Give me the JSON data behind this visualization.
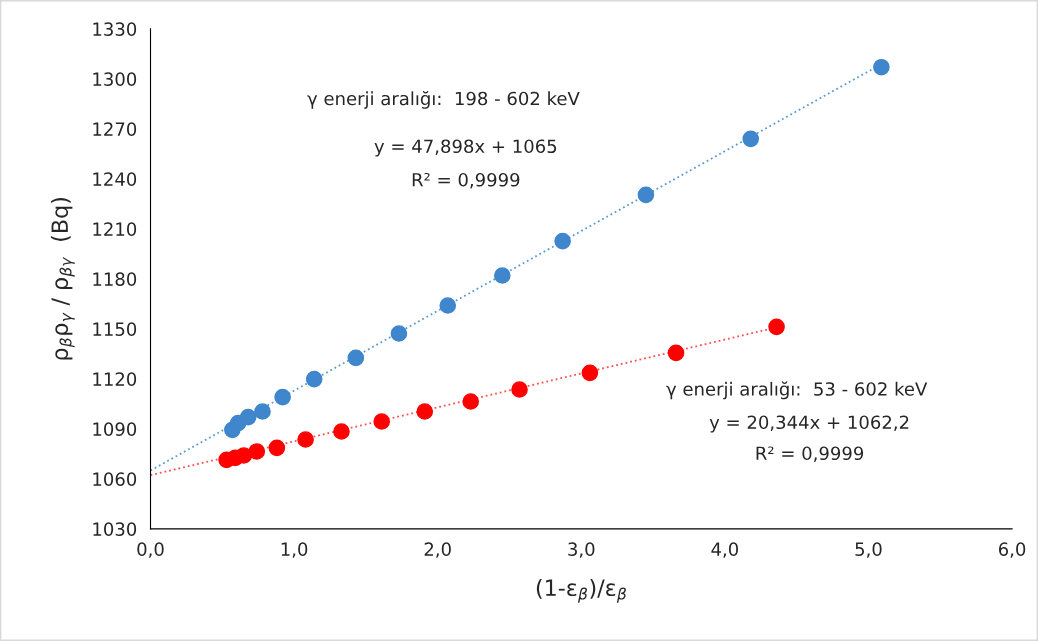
{
  "chart_data": {
    "type": "scatter",
    "xlabel": "(1-ε$_{β}$)/ε$_{β}$",
    "ylabel": "ρ$_{β}$ρ$_{γ}$ / ρ$_{βγ}$  (Bq)",
    "xlim": [
      0,
      6
    ],
    "ylim": [
      1030,
      1330
    ],
    "xticks": [
      {
        "value": 0,
        "label": "0,0"
      },
      {
        "value": 1,
        "label": "1,0"
      },
      {
        "value": 2,
        "label": "2,0"
      },
      {
        "value": 3,
        "label": "3,0"
      },
      {
        "value": 4,
        "label": "4,0"
      },
      {
        "value": 5,
        "label": "5,0"
      },
      {
        "value": 6,
        "label": "6,0"
      }
    ],
    "yticks": [
      1030,
      1060,
      1090,
      1120,
      1150,
      1180,
      1210,
      1240,
      1270,
      1300,
      1330
    ],
    "grid": false,
    "legend": false,
    "marker": "circle",
    "series": [
      {
        "type": "line",
        "color": "#5b9bd5",
        "line_style": "dotted",
        "marker": "none",
        "x": [
          0,
          5.09
        ],
        "values": [
          1065,
          1308.8
        ]
      },
      {
        "type": "line",
        "color": "#ff5050",
        "line_style": "dotted",
        "marker": "none",
        "x": [
          0,
          4.36
        ],
        "values": [
          1062.2,
          1150.9
        ]
      },
      {
        "color": "#3f86cc",
        "x": [
          0.57,
          0.61,
          0.68,
          0.78,
          0.92,
          1.14,
          1.43,
          1.73,
          2.07,
          2.45,
          2.87,
          3.45,
          4.18,
          5.09
        ],
        "values": [
          1089.4,
          1093.4,
          1097,
          1100.4,
          1109,
          1119.8,
          1132.6,
          1147.2,
          1164,
          1182,
          1202.6,
          1230.4,
          1264,
          1307
        ]
      },
      {
        "color": "#ff0000",
        "x": [
          0.53,
          0.59,
          0.65,
          0.74,
          0.88,
          1.08,
          1.33,
          1.61,
          1.91,
          2.23,
          2.57,
          3.06,
          3.66,
          4.36
        ],
        "values": [
          1071.4,
          1072.6,
          1074,
          1076.4,
          1078.6,
          1083.6,
          1088.4,
          1094.4,
          1100.4,
          1106.4,
          1113.6,
          1123.6,
          1135.6,
          1151.2
        ]
      }
    ],
    "annotations": [
      "γ enerji aralığı:  198 - 602 keV",
      "y = 47,898x + 1065",
      "R² = 0,9999",
      "γ enerji aralığı:  53 - 602 keV",
      "y = 20,344x + 1062,2",
      "R² = 0,9999"
    ]
  }
}
